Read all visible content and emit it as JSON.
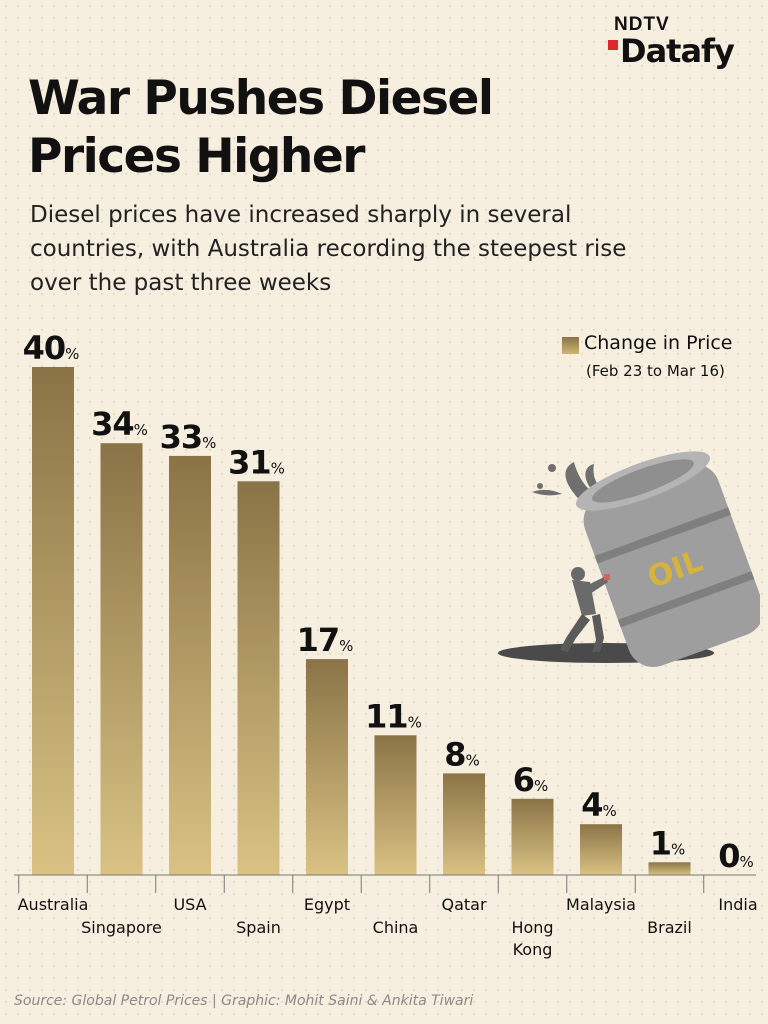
{
  "brand": {
    "top": "NDTV",
    "bottom": "Datafy"
  },
  "title": "War Pushes Diesel Prices Higher",
  "subtitle": "Diesel prices have increased sharply in several countries, with Australia recording the steepest rise over the past three weeks",
  "legend": {
    "label": "Change in Price",
    "sublabel": "(Feb 23 to Mar 16)"
  },
  "illustration": {
    "icon": "oil-barrel-push-illustration",
    "barrel_text": "OIL"
  },
  "source": "Source: Global Petrol Prices | Graphic: Mohit Saini & Ankita Tiwari",
  "chart_data": {
    "type": "bar",
    "categories": [
      "Australia",
      "Singapore",
      "USA",
      "Spain",
      "Egypt",
      "China",
      "Qatar",
      "Hong Kong",
      "Malaysia",
      "Brazil",
      "India"
    ],
    "values": [
      40,
      34,
      33,
      31,
      17,
      11,
      8,
      6,
      4,
      1,
      0
    ],
    "unit": "%",
    "series": [
      {
        "name": "Change in Price",
        "values": [
          40,
          34,
          33,
          31,
          17,
          11,
          8,
          6,
          4,
          1,
          0
        ]
      }
    ],
    "ylim": [
      0,
      40
    ],
    "grid": false,
    "legend_position": "top-right",
    "bar_colors": {
      "top": "#8a7447",
      "bottom": "#d9c283"
    }
  }
}
